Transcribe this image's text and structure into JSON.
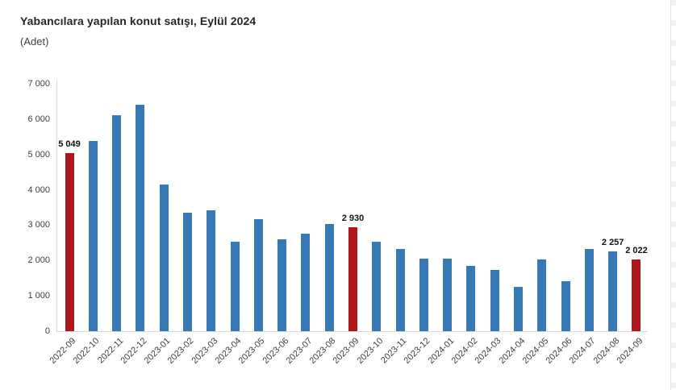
{
  "chart_data": {
    "type": "bar",
    "title": "Yabancılara yapılan konut satışı, Eylül 2024",
    "subtitle": "(Adet)",
    "categories": [
      "2022-09",
      "2022-10",
      "2022-11",
      "2022-12",
      "2023-01",
      "2023-02",
      "2023-03",
      "2023-04",
      "2023-05",
      "2023-06",
      "2023-07",
      "2023-08",
      "2023-09",
      "2023-10",
      "2023-11",
      "2023-12",
      "2024-01",
      "2024-02",
      "2024-03",
      "2024-04",
      "2024-05",
      "2024-06",
      "2024-07",
      "2024-08",
      "2024-09"
    ],
    "values": [
      5049,
      5380,
      6110,
      6400,
      4160,
      3350,
      3410,
      2540,
      3160,
      2600,
      2770,
      3040,
      2930,
      2520,
      2320,
      2060,
      2050,
      1840,
      1740,
      1250,
      2040,
      1420,
      2330,
      2257,
      2022
    ],
    "highlighted_categories": [
      "2022-09",
      "2023-09",
      "2024-09"
    ],
    "data_labels": [
      {
        "category": "2022-09",
        "label": "5 049"
      },
      {
        "category": "2023-09",
        "label": "2 930"
      },
      {
        "category": "2024-08",
        "label": "2 257"
      },
      {
        "category": "2024-09",
        "label": "2 022"
      }
    ],
    "colors": {
      "bar": "#3779B5",
      "highlight": "#AE181D",
      "axis": "#d6d6d6"
    },
    "ylim": [
      0,
      7000
    ],
    "ytick_interval": 1000,
    "ytick_labels": [
      "0",
      "1 000",
      "2 000",
      "3 000",
      "4 000",
      "5 000",
      "6 000",
      "7 000"
    ],
    "grid": "off",
    "legend": "none",
    "xlabel": "",
    "ylabel": ""
  }
}
